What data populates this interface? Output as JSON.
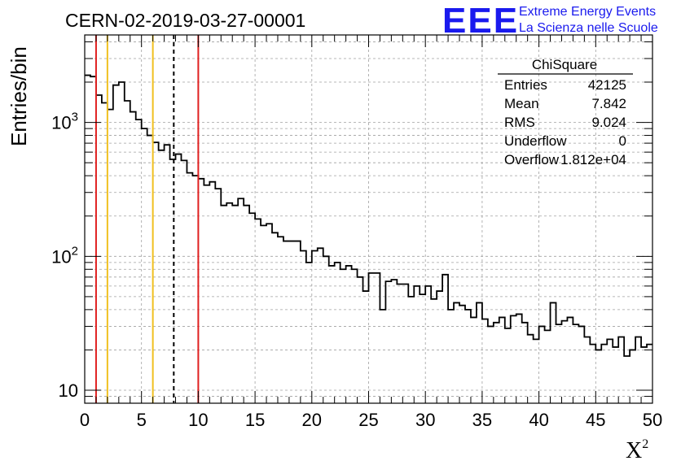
{
  "header": {
    "run_title": "CERN-02-2019-03-27-00001",
    "logo_text": "EEE",
    "logo_line1": "Extreme Energy Events",
    "logo_line2": "La Scienza nelle Scuole"
  },
  "stats": {
    "title": "ChiSquare",
    "rows": [
      {
        "label": "Entries",
        "value": "42125"
      },
      {
        "label": "Mean",
        "value": "7.842"
      },
      {
        "label": "RMS",
        "value": "9.024"
      },
      {
        "label": "Underflow",
        "value": "0"
      },
      {
        "label": "Overflow",
        "value": "1.812e+04"
      }
    ]
  },
  "chart_data": {
    "type": "histogram",
    "title": "CERN-02-2019-03-27-00001",
    "xlabel": "X",
    "xlabel_sup": "2",
    "ylabel": "Entries/bin",
    "xlim": [
      0,
      50
    ],
    "ylim": [
      8,
      4500
    ],
    "yscale": "log",
    "grid": true,
    "bin_width": 0.5,
    "x_ticks": [
      "0",
      "5",
      "10",
      "15",
      "20",
      "25",
      "30",
      "35",
      "40",
      "45",
      "50"
    ],
    "y_ticks": [
      {
        "value": 10,
        "base": "10",
        "exp": ""
      },
      {
        "value": 100,
        "base": "10",
        "exp": "2"
      },
      {
        "value": 1000,
        "base": "10",
        "exp": "3"
      }
    ],
    "values": [
      2250,
      2200,
      1600,
      1400,
      1250,
      1900,
      2000,
      1450,
      1200,
      1050,
      900,
      800,
      710,
      620,
      680,
      530,
      580,
      520,
      420,
      400,
      380,
      340,
      360,
      320,
      240,
      250,
      240,
      270,
      240,
      210,
      190,
      170,
      175,
      150,
      140,
      130,
      130,
      130,
      110,
      90,
      110,
      115,
      100,
      85,
      90,
      80,
      85,
      80,
      70,
      55,
      75,
      75,
      40,
      65,
      67,
      62,
      62,
      50,
      60,
      52,
      60,
      48,
      55,
      73,
      40,
      45,
      43,
      40,
      35,
      45,
      34,
      30,
      32,
      35,
      29,
      36,
      37,
      32,
      26,
      24,
      30,
      28,
      45,
      31,
      33,
      35,
      31,
      30,
      25,
      22,
      20,
      22,
      24,
      21,
      25,
      18,
      20,
      25,
      21,
      22
    ],
    "vertical_lines": [
      {
        "x": 1,
        "color": "#e02020",
        "style": "solid"
      },
      {
        "x": 2,
        "color": "#f0c020",
        "style": "solid"
      },
      {
        "x": 6,
        "color": "#f0c020",
        "style": "solid"
      },
      {
        "x": 7.842,
        "color": "#000000",
        "style": "dashed"
      },
      {
        "x": 10,
        "color": "#e02020",
        "style": "solid"
      }
    ]
  },
  "colors": {
    "logo": "#1a1aee",
    "red_line": "#e02020",
    "yellow_line": "#f0c020",
    "grid": "#a0a0a0"
  }
}
